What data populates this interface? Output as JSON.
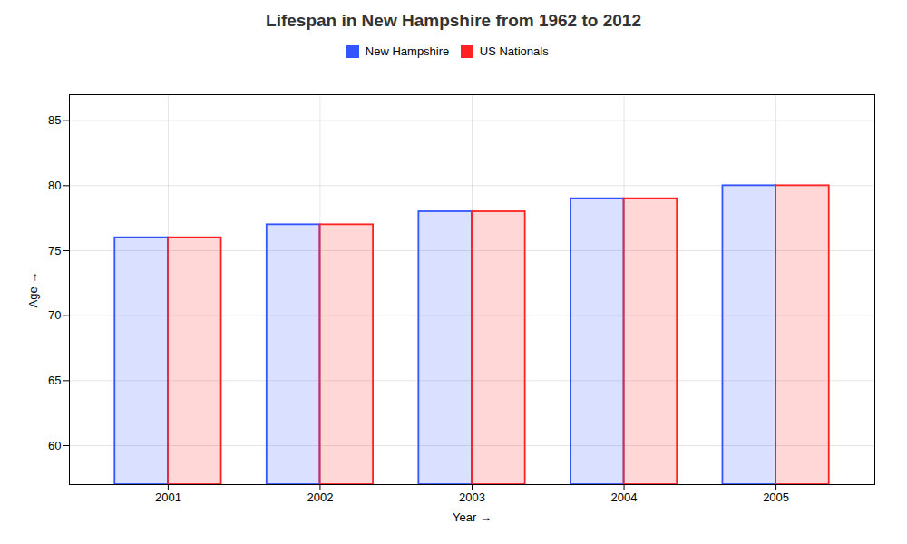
{
  "chart_data": {
    "type": "bar",
    "title": "Lifespan in New Hampshire from 1962 to 2012",
    "xlabel": "Year",
    "ylabel": "Age",
    "categories": [
      "2001",
      "2002",
      "2003",
      "2004",
      "2005"
    ],
    "series": [
      {
        "name": "New Hampshire",
        "color": "#3355ff",
        "values": [
          76,
          77,
          78,
          79,
          80
        ]
      },
      {
        "name": "US Nationals",
        "color": "#ff2222",
        "values": [
          76,
          77,
          78,
          79,
          80
        ]
      }
    ],
    "ylim": [
      57,
      87
    ],
    "yticks": [
      60,
      65,
      70,
      75,
      80,
      85
    ],
    "grid": true,
    "legend": "top"
  }
}
